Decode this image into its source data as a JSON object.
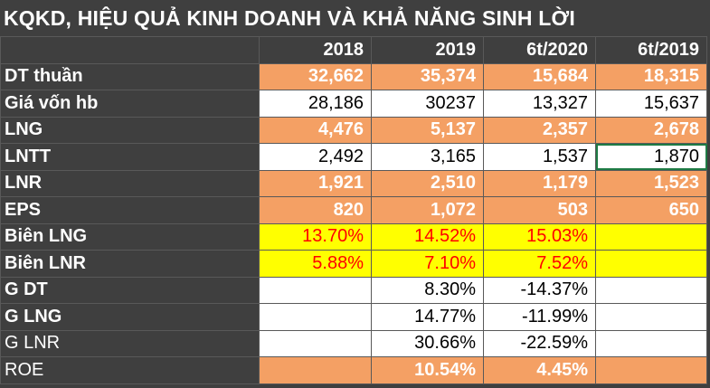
{
  "title": "KQKD, HIỆU QUẢ KINH DOANH VÀ KHẢ NĂNG SINH LỜI",
  "columns": [
    "2018",
    "2019",
    "6t/2020",
    "6t/2019"
  ],
  "rows": [
    {
      "label": "DT thuần",
      "values": [
        "32,662",
        "35,374",
        "15,684",
        "18,315"
      ]
    },
    {
      "label": "Giá vốn hb",
      "values": [
        "28,186",
        "30237",
        "13,327",
        "15,637"
      ]
    },
    {
      "label": "LNG",
      "values": [
        "4,476",
        "5,137",
        "2,357",
        "2,678"
      ]
    },
    {
      "label": "LNTT",
      "values": [
        "2,492",
        "3,165",
        "1,537",
        "1,870"
      ]
    },
    {
      "label": "LNR",
      "values": [
        "1,921",
        "2,510",
        "1,179",
        "1,523"
      ]
    },
    {
      "label": "EPS",
      "values": [
        "820",
        "1,072",
        "503",
        "650"
      ]
    },
    {
      "label": "Biên LNG",
      "values": [
        "13.70%",
        "14.52%",
        "15.03%",
        ""
      ]
    },
    {
      "label": "Biên LNR",
      "values": [
        "5.88%",
        "7.10%",
        "7.52%",
        ""
      ]
    },
    {
      "label": "G DT",
      "values": [
        "",
        "8.30%",
        "-14.37%",
        ""
      ]
    },
    {
      "label": "G LNG",
      "values": [
        "",
        "14.77%",
        "-11.99%",
        ""
      ]
    },
    {
      "label": "G LNR",
      "values": [
        "",
        "30.66%",
        "-22.59%",
        ""
      ]
    },
    {
      "label": "ROE",
      "values": [
        "",
        "10.54%",
        "4.45%",
        ""
      ]
    }
  ],
  "colors": {
    "background": "#3f3f3f",
    "orange": "#f4a064",
    "yellow": "#ffff00",
    "red_text": "#ff0000",
    "white": "#ffffff"
  }
}
